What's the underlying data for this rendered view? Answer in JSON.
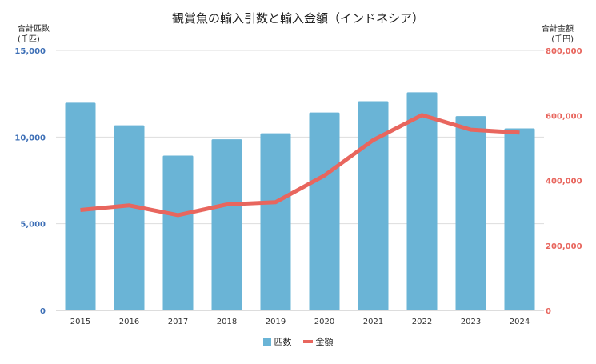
{
  "chart_data": {
    "type": "bar+line",
    "title": "観賞魚の輸入引数と輸入金額（インドネシア）",
    "left_axis_label": "合計匹数\n(千匹)",
    "right_axis_label": "合計金額\n(千円)",
    "categories": [
      "2015",
      "2016",
      "2017",
      "2018",
      "2019",
      "2020",
      "2021",
      "2022",
      "2023",
      "2024"
    ],
    "series": [
      {
        "name": "匹数",
        "type": "bar",
        "axis": "left",
        "color": "#6ab4d6",
        "values": [
          11980,
          10680,
          8930,
          9870,
          10220,
          11420,
          12070,
          12580,
          11210,
          10500
        ]
      },
      {
        "name": "金額",
        "type": "line",
        "axis": "right",
        "color": "#e8665e",
        "values": [
          309000,
          323000,
          293000,
          326000,
          333000,
          415000,
          524000,
          601000,
          556000,
          547000
        ]
      }
    ],
    "left_ylim": [
      0,
      15000
    ],
    "left_ticks": [
      "0",
      "5,000",
      "10,000",
      "15,000"
    ],
    "left_tick_values": [
      0,
      5000,
      10000,
      15000
    ],
    "left_tick_color": "#3d6fb6",
    "right_ylim": [
      0,
      800000
    ],
    "right_ticks": [
      "0",
      "200,000",
      "400,000",
      "600,000",
      "800,000"
    ],
    "right_tick_values": [
      0,
      200000,
      400000,
      600000,
      800000
    ],
    "right_tick_color": "#e8665e",
    "grid": true,
    "legend": "bottom"
  }
}
